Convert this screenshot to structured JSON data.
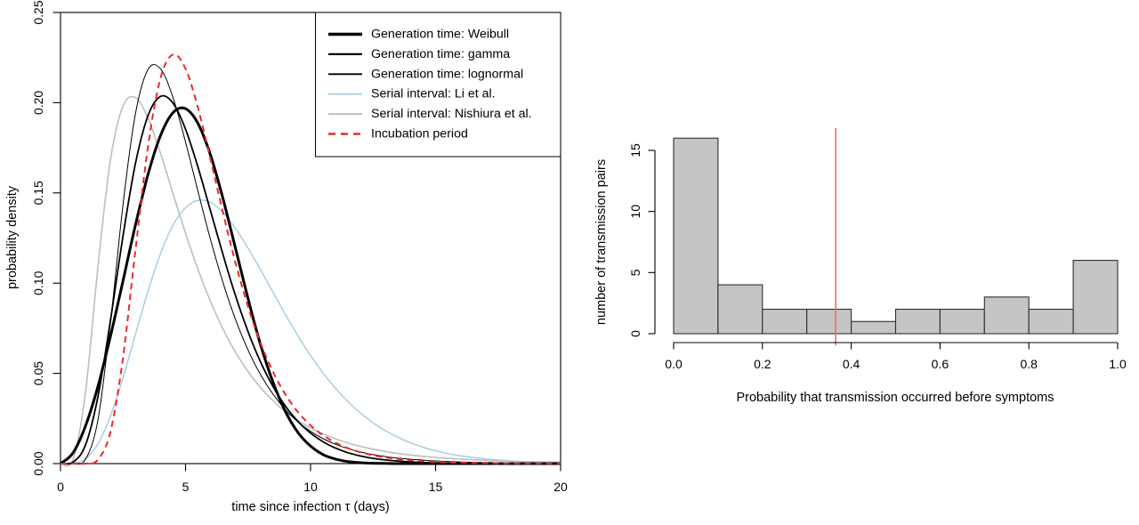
{
  "figure": {
    "background": "#FFFFFF",
    "text_color": "#000000",
    "axis_color": "#000000"
  },
  "chart_data": [
    {
      "panel": "left",
      "type": "line",
      "title": "",
      "xlabel": "time since infection τ (days)",
      "ylabel": "probability density",
      "xlim": [
        0,
        20
      ],
      "ylim": [
        0,
        0.25
      ],
      "xticks": [
        0,
        5,
        10,
        15,
        20
      ],
      "xtick_labels": [
        "0",
        "5",
        "10",
        "15",
        "20"
      ],
      "yticks": [
        0,
        0.05,
        0.1,
        0.15,
        0.2,
        0.25
      ],
      "ytick_labels": [
        "0.00",
        "0.05",
        "0.10",
        "0.15",
        "0.20",
        "0.25"
      ],
      "grid": false,
      "legend_position": "top-right",
      "x_start": 0,
      "x_step": 0.5,
      "series": [
        {
          "id": "nishiura",
          "name": "Serial interval: Nishiura et al.",
          "color": "#BEBEBE",
          "width": 1.6,
          "dash": null,
          "legend_order": 5,
          "values": [
            0,
            0.0022,
            0.0396,
            0.1098,
            0.1685,
            0.1982,
            0.2028,
            0.1914,
            0.172,
            0.1497,
            0.1277,
            0.1075,
            0.0898,
            0.0745,
            0.0617,
            0.051,
            0.0421,
            0.0348,
            0.0287,
            0.0238,
            0.0197,
            0.0164,
            0.0137,
            0.0114,
            0.0095,
            0.008,
            0.0067,
            0.0056,
            0.0048,
            0.004,
            0.0034,
            0.0029,
            0.0025,
            0.0021,
            0.0018,
            0.0015,
            0.0013,
            0.0011,
            0.001,
            0.0009,
            0.0008
          ]
        },
        {
          "id": "li",
          "name": "Serial interval: Li et al.",
          "color": "#A9CDE2",
          "width": 1.5,
          "dash": null,
          "legend_order": 4,
          "values": [
            0,
            0.0002,
            0.0027,
            0.011,
            0.0264,
            0.0476,
            0.0718,
            0.0956,
            0.1163,
            0.1321,
            0.1418,
            0.1459,
            0.1447,
            0.1391,
            0.1303,
            0.1194,
            0.1074,
            0.0949,
            0.0825,
            0.0707,
            0.0599,
            0.0502,
            0.0417,
            0.0343,
            0.028,
            0.0226,
            0.0182,
            0.0145,
            0.0115,
            0.0091,
            0.0071,
            0.0055,
            0.0043,
            0.0034,
            0.0026,
            0.002,
            0.0015,
            0.0012,
            0.0009,
            0.0007,
            0.0005
          ]
        },
        {
          "id": "lognormal",
          "name": "Generation time: lognormal",
          "color": "#000000",
          "width": 1.0,
          "dash": null,
          "legend_order": 3,
          "values": [
            0,
            0,
            0.0023,
            0.0245,
            0.0785,
            0.1437,
            0.1941,
            0.2184,
            0.2188,
            0.2028,
            0.1782,
            0.1507,
            0.1241,
            0.1002,
            0.0798,
            0.0629,
            0.0493,
            0.0384,
            0.0298,
            0.0231,
            0.0179,
            0.0138,
            0.0107,
            0.0083,
            0.0064,
            0.005,
            0.0039,
            0.003,
            0.0024,
            0.0019,
            0.0015,
            0.0012,
            0.0009,
            0.0007,
            0.0006,
            0.0005,
            0.0004,
            0.0003,
            0.0002,
            0.0002,
            0.0002
          ]
        },
        {
          "id": "gamma",
          "name": "Generation time: gamma",
          "color": "#000000",
          "width": 1.8,
          "dash": null,
          "legend_order": 2,
          "values": [
            0,
            0.0008,
            0.0103,
            0.0374,
            0.0796,
            0.1263,
            0.1665,
            0.1928,
            0.2035,
            0.1998,
            0.1853,
            0.1641,
            0.14,
            0.1157,
            0.093,
            0.0731,
            0.0563,
            0.0426,
            0.0317,
            0.0233,
            0.0169,
            0.0121,
            0.0086,
            0.006,
            0.0042,
            0.0029,
            0.002,
            0.0014,
            0.0009,
            0.0006,
            0.0004,
            0.0003,
            0.0002,
            0.0001,
            0.0001,
            0.0001,
            0,
            0,
            0,
            0,
            0
          ]
        },
        {
          "id": "weibull",
          "name": "Generation time: Weibull",
          "color": "#000000",
          "width": 3.0,
          "dash": null,
          "legend_order": 1,
          "values": [
            0,
            0.0059,
            0.0209,
            0.043,
            0.0707,
            0.1014,
            0.1324,
            0.1602,
            0.1818,
            0.1945,
            0.1967,
            0.1884,
            0.1709,
            0.1467,
            0.1192,
            0.0914,
            0.0659,
            0.045,
            0.0287,
            0.0172,
            0.0097,
            0.005,
            0.0025,
            0.0011,
            0.0005,
            0.0002,
            0.0001,
            0,
            0,
            0,
            0,
            0,
            0,
            0,
            0,
            0,
            0,
            0,
            0,
            0,
            0
          ]
        },
        {
          "id": "incubation",
          "name": "Incubation period",
          "color": "#EC2A2A",
          "width": 2.0,
          "dash": "7 5",
          "legend_order": 6,
          "values": [
            0,
            0,
            0,
            0.0022,
            0.0178,
            0.0589,
            0.1185,
            0.1757,
            0.2136,
            0.2267,
            0.2188,
            0.197,
            0.1686,
            0.1389,
            0.1111,
            0.0869,
            0.0669,
            0.0508,
            0.0382,
            0.0285,
            0.0212,
            0.0157,
            0.0116,
            0.0085,
            0.0063,
            0.0046,
            0.0034,
            0.0025,
            0.0018,
            0.0013,
            0.001,
            0.0007,
            0.0006,
            0.0004,
            0.0003,
            0.0002,
            0.0002,
            0.0001,
            0.0001,
            0.0001,
            0
          ]
        }
      ]
    },
    {
      "panel": "right",
      "type": "bar",
      "title": "",
      "xlabel": "Probability that transmission occurred before symptoms",
      "ylabel": "number of transmission pairs",
      "xlim": [
        0,
        1
      ],
      "ylim": [
        0,
        16.9
      ],
      "bin_start": 0,
      "bin_width": 0.1,
      "categories": [
        "0.0-0.1",
        "0.1-0.2",
        "0.2-0.3",
        "0.3-0.4",
        "0.4-0.5",
        "0.5-0.6",
        "0.6-0.7",
        "0.7-0.8",
        "0.8-0.9",
        "0.9-1.0"
      ],
      "values": [
        16,
        4,
        2,
        2,
        1,
        2,
        2,
        3,
        2,
        6
      ],
      "xticks": [
        0,
        0.2,
        0.4,
        0.6,
        0.8,
        1
      ],
      "xtick_labels": [
        "0.0",
        "0.2",
        "0.4",
        "0.6",
        "0.8",
        "1.0"
      ],
      "yticks": [
        0,
        5,
        10,
        15
      ],
      "ytick_labels": [
        "0",
        "5",
        "10",
        "15"
      ],
      "grid": false,
      "bar_fill": "#C5C5C5",
      "bar_border": "#2E2E2E",
      "vline": {
        "x": 0.365,
        "color": "#E9706E"
      }
    }
  ]
}
